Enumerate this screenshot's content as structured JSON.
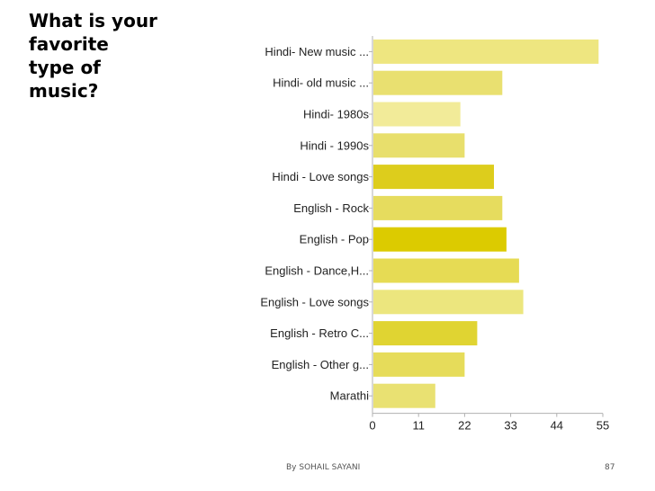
{
  "slide": {
    "title_lines": [
      "What is your",
      "favorite",
      "type of",
      "music?"
    ],
    "footer_author": "By SOHAIL SAYANI",
    "page_number": "87"
  },
  "chart_data": {
    "type": "bar",
    "orientation": "horizontal",
    "categories": [
      "Hindi- New music ...",
      "Hindi- old music ...",
      "Hindi- 1980s",
      "Hindi - 1990s",
      "Hindi - Love songs",
      "English - Rock",
      "English - Pop",
      "English - Dance,H...",
      "English - Love songs",
      "English - Retro C...",
      "English - Other g...",
      "Marathi"
    ],
    "values": [
      54,
      31,
      21,
      22,
      29,
      31,
      32,
      35,
      36,
      25,
      22,
      15
    ],
    "colors": [
      "#eee680",
      "#e9e070",
      "#f2eb99",
      "#e8df6c",
      "#ddcd1c",
      "#e6dc5e",
      "#dccb00",
      "#e6db54",
      "#ece67e",
      "#e0d432",
      "#e6dc5a",
      "#e9e172"
    ],
    "xticks": [
      0,
      11,
      22,
      33,
      44,
      55
    ],
    "xlim": [
      0,
      55
    ],
    "grid": false,
    "legend": "none"
  }
}
